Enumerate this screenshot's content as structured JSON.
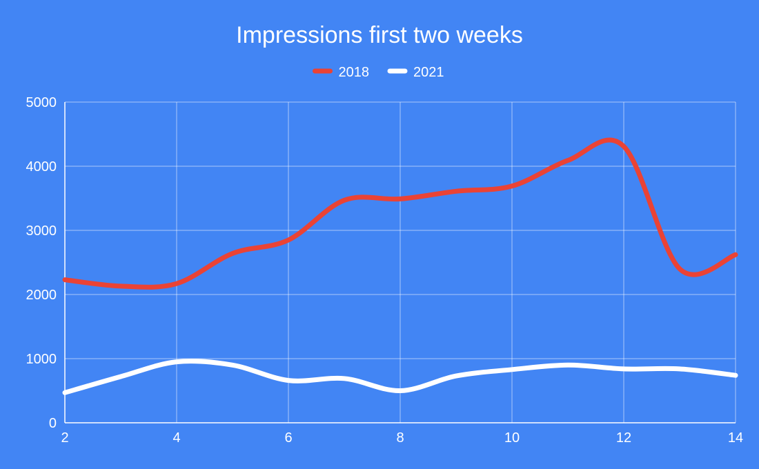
{
  "chart_data": {
    "type": "line",
    "title": "Impressions first two weeks",
    "xlabel": "",
    "ylabel": "",
    "x": [
      2,
      3,
      4,
      5,
      6,
      7,
      8,
      9,
      10,
      11,
      12,
      13,
      14
    ],
    "xlim": [
      2,
      14
    ],
    "ylim": [
      0,
      5000
    ],
    "x_ticks": [
      "2",
      "4",
      "6",
      "8",
      "10",
      "12",
      "14"
    ],
    "y_ticks": [
      "0",
      "1000",
      "2000",
      "3000",
      "4000",
      "5000"
    ],
    "grid": true,
    "legend_position": "top",
    "series": [
      {
        "name": "2018",
        "color": "#ea4335",
        "values": [
          2230,
          2130,
          2170,
          2640,
          2850,
          3470,
          3490,
          3610,
          3690,
          4090,
          4310,
          2400,
          2620
        ]
      },
      {
        "name": "2021",
        "color": "#ffffff",
        "values": [
          470,
          720,
          950,
          900,
          660,
          690,
          500,
          730,
          830,
          900,
          840,
          840,
          740
        ]
      }
    ]
  }
}
